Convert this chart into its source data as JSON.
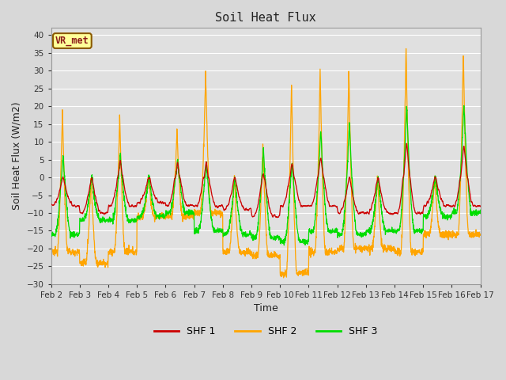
{
  "title": "Soil Heat Flux",
  "xlabel": "Time",
  "ylabel": "Soil Heat Flux (W/m2)",
  "ylim": [
    -30,
    42
  ],
  "yticks": [
    -30,
    -25,
    -20,
    -15,
    -10,
    -5,
    0,
    5,
    10,
    15,
    20,
    25,
    30,
    35,
    40
  ],
  "bg_color": "#d8d8d8",
  "plot_bg_color": "#e0e0e0",
  "grid_color": "#ffffff",
  "line_colors": {
    "SHF 1": "#cc0000",
    "SHF 2": "#ffa500",
    "SHF 3": "#00dd00"
  },
  "legend_label_box": "VR_met",
  "legend_label_box_facecolor": "#ffff99",
  "legend_label_box_edgecolor": "#8b5a00",
  "n_days": 15,
  "pts_per_day": 144,
  "x_tick_labels": [
    "Feb 2",
    "Feb 3",
    "Feb 4",
    "Feb 5",
    "Feb 6",
    "Feb 7",
    "Feb 8",
    "Feb 9",
    "Feb 10",
    "Feb 11",
    "Feb 12",
    "Feb 13",
    "Feb 14",
    "Feb 15",
    "Feb 16",
    "Feb 17"
  ],
  "legend_entries": [
    "SHF 1",
    "SHF 2",
    "SHF 3"
  ],
  "shf2_day_peaks": [
    19.5,
    0,
    17.5,
    0,
    13.5,
    29.5,
    0,
    9.5,
    27.0,
    31.0,
    30.5,
    0,
    37.5,
    0,
    36.0
  ],
  "shf2_night_troughs": [
    -21,
    -24,
    -21,
    -11,
    -11,
    -10,
    -21,
    -22,
    -27,
    -21,
    -20,
    -20,
    -21,
    -16,
    -16
  ],
  "shf3_day_peaks": [
    7,
    0,
    7,
    0,
    6,
    5,
    0,
    9,
    5,
    14,
    16,
    0,
    21,
    0,
    21
  ],
  "shf3_night_troughs": [
    -16,
    -12,
    -12,
    -11,
    -10,
    -15,
    -16,
    -17,
    -18,
    -15,
    -16,
    -15,
    -15,
    -11,
    -10
  ],
  "shf1_day_peaks": [
    0,
    0,
    5.5,
    0,
    5,
    5,
    0,
    2,
    5,
    7,
    0,
    0,
    11,
    0,
    10
  ],
  "shf1_night_troughs": [
    -8,
    -10,
    -8,
    -7,
    -8,
    -8,
    -9,
    -11,
    -8,
    -8,
    -10,
    -10,
    -10,
    -8,
    -8
  ]
}
